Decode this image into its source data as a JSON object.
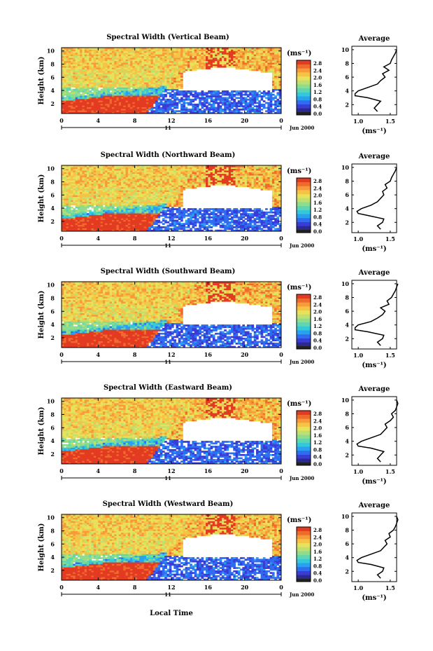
{
  "figure": {
    "xlabel": "Local Time",
    "avg_title": "Average"
  },
  "chart_data": [
    {
      "type": "heatmap",
      "title": "Spectral Width (Vertical Beam)",
      "ylabel": "Height (km)",
      "x_ticks": [
        "0",
        "4",
        "8",
        "12",
        "16",
        "20",
        "0"
      ],
      "y_ticks": [
        "2",
        "4",
        "6",
        "8",
        "10"
      ],
      "xlim": [
        0,
        24
      ],
      "ylim": [
        0.5,
        10.5
      ],
      "day_label": "11",
      "date_label": "Jun 2000",
      "colorbar": {
        "unit": "(ms⁻¹)",
        "ticks": [
          "2.8",
          "2.4",
          "2.0",
          "1.6",
          "1.2",
          "0.8",
          "0.4",
          "0.0"
        ],
        "range": [
          0.0,
          2.8
        ]
      },
      "average": {
        "title": "Average",
        "xlabel": "(ms⁻¹)",
        "x_ticks": [
          "1.0",
          "1.5"
        ],
        "xlim": [
          0.9,
          1.6
        ],
        "y_ticks": [
          "2",
          "4",
          "6",
          "8",
          "10"
        ],
        "heights": [
          1.0,
          1.5,
          2.0,
          2.5,
          3.0,
          3.3,
          3.6,
          4.0,
          4.5,
          5.0,
          5.5,
          6.0,
          6.5,
          7.0,
          7.5,
          8.0,
          8.5,
          9.0,
          9.5,
          10.0
        ],
        "values": [
          1.3,
          1.25,
          1.3,
          1.35,
          1.15,
          0.95,
          0.95,
          1.0,
          1.15,
          1.3,
          1.35,
          1.42,
          1.38,
          1.48,
          1.4,
          1.5,
          1.52,
          1.55,
          1.58,
          1.6
        ]
      }
    },
    {
      "type": "heatmap",
      "title": "Spectral Width (Northward Beam)",
      "ylabel": "Height (km)",
      "x_ticks": [
        "0",
        "4",
        "8",
        "12",
        "16",
        "20",
        "0"
      ],
      "y_ticks": [
        "2",
        "4",
        "6",
        "8",
        "10"
      ],
      "xlim": [
        0,
        24
      ],
      "ylim": [
        0.5,
        10.5
      ],
      "day_label": "11",
      "date_label": "Jun 2000",
      "colorbar": {
        "unit": "(ms⁻¹)",
        "ticks": [
          "2.8",
          "2.4",
          "2.0",
          "1.6",
          "1.2",
          "0.8",
          "0.4",
          "0.0"
        ],
        "range": [
          0.0,
          2.8
        ]
      },
      "average": {
        "title": "Average",
        "xlabel": "(ms⁻¹)",
        "x_ticks": [
          "1.0",
          "1.5"
        ],
        "xlim": [
          0.9,
          1.6
        ],
        "y_ticks": [
          "2",
          "4",
          "6",
          "8",
          "10"
        ],
        "heights": [
          1.0,
          1.5,
          2.0,
          2.5,
          3.0,
          3.3,
          3.6,
          4.0,
          4.5,
          5.0,
          5.5,
          6.0,
          6.5,
          7.0,
          7.5,
          8.0,
          8.5,
          9.0,
          9.5,
          10.0
        ],
        "values": [
          1.35,
          1.3,
          1.38,
          1.4,
          1.15,
          1.0,
          0.98,
          1.05,
          1.2,
          1.3,
          1.35,
          1.4,
          1.38,
          1.45,
          1.42,
          1.5,
          1.52,
          1.55,
          1.58,
          1.6
        ]
      }
    },
    {
      "type": "heatmap",
      "title": "Spectral Width (Southward Beam)",
      "ylabel": "Height (km)",
      "x_ticks": [
        "0",
        "4",
        "8",
        "12",
        "16",
        "20",
        "0"
      ],
      "y_ticks": [
        "2",
        "4",
        "6",
        "8",
        "10"
      ],
      "xlim": [
        0,
        24
      ],
      "ylim": [
        0.5,
        10.5
      ],
      "day_label": "11",
      "date_label": "Jun 2000",
      "colorbar": {
        "unit": "(ms⁻¹)",
        "ticks": [
          "2.8",
          "2.4",
          "2.0",
          "1.6",
          "1.2",
          "0.8",
          "0.4",
          "0.0"
        ],
        "range": [
          0.0,
          2.8
        ]
      },
      "average": {
        "title": "Average",
        "xlabel": "(ms⁻¹)",
        "x_ticks": [
          "1.0",
          "1.5"
        ],
        "xlim": [
          0.9,
          1.6
        ],
        "y_ticks": [
          "2",
          "4",
          "6",
          "8",
          "10"
        ],
        "heights": [
          1.0,
          1.5,
          2.0,
          2.5,
          3.0,
          3.3,
          3.6,
          4.0,
          4.5,
          5.0,
          5.5,
          6.0,
          6.5,
          7.0,
          7.5,
          8.0,
          8.5,
          9.0,
          9.5,
          10.0
        ],
        "values": [
          1.35,
          1.3,
          1.38,
          1.4,
          1.15,
          0.95,
          0.95,
          1.0,
          1.2,
          1.3,
          1.38,
          1.42,
          1.35,
          1.48,
          1.45,
          1.52,
          1.55,
          1.58,
          1.6,
          1.62
        ]
      }
    },
    {
      "type": "heatmap",
      "title": "Spectral Width (Eastward Beam)",
      "ylabel": "Height (km)",
      "x_ticks": [
        "0",
        "4",
        "8",
        "12",
        "16",
        "20",
        "0"
      ],
      "y_ticks": [
        "2",
        "4",
        "6",
        "8",
        "10"
      ],
      "xlim": [
        0,
        24
      ],
      "ylim": [
        0.5,
        10.5
      ],
      "day_label": "11",
      "date_label": "Jun 2000",
      "colorbar": {
        "unit": "(ms⁻¹)",
        "ticks": [
          "2.8",
          "2.4",
          "2.0",
          "1.6",
          "1.2",
          "0.8",
          "0.4",
          "0.0"
        ],
        "range": [
          0.0,
          2.8
        ]
      },
      "average": {
        "title": "Average",
        "xlabel": "(ms⁻¹)",
        "x_ticks": [
          "1.0",
          "1.5"
        ],
        "xlim": [
          0.9,
          1.6
        ],
        "y_ticks": [
          "2",
          "4",
          "6",
          "8",
          "10"
        ],
        "heights": [
          1.0,
          1.5,
          2.0,
          2.5,
          3.0,
          3.3,
          3.6,
          4.0,
          4.5,
          5.0,
          5.5,
          6.0,
          6.5,
          7.0,
          7.5,
          8.0,
          8.5,
          9.0,
          9.5,
          10.0
        ],
        "values": [
          1.35,
          1.3,
          1.35,
          1.4,
          1.2,
          1.0,
          0.98,
          1.05,
          1.2,
          1.35,
          1.4,
          1.45,
          1.42,
          1.5,
          1.55,
          1.52,
          1.58,
          1.6,
          1.62,
          1.6
        ]
      }
    },
    {
      "type": "heatmap",
      "title": "Spectral Width (Westward Beam)",
      "ylabel": "Height (km)",
      "x_ticks": [
        "0",
        "4",
        "8",
        "12",
        "16",
        "20",
        "0"
      ],
      "y_ticks": [
        "2",
        "4",
        "6",
        "8",
        "10"
      ],
      "xlim": [
        0,
        24
      ],
      "ylim": [
        0.5,
        10.5
      ],
      "day_label": "11",
      "date_label": "Jun 2000",
      "colorbar": {
        "unit": "(ms⁻¹)",
        "ticks": [
          "2.8",
          "2.4",
          "2.0",
          "1.6",
          "1.2",
          "0.8",
          "0.4",
          "0.0"
        ],
        "range": [
          0.0,
          2.8
        ]
      },
      "average": {
        "title": "Average",
        "xlabel": "(ms⁻¹)",
        "x_ticks": [
          "1.0",
          "1.5"
        ],
        "xlim": [
          0.9,
          1.6
        ],
        "y_ticks": [
          "2",
          "4",
          "6",
          "8",
          "10"
        ],
        "heights": [
          1.0,
          1.5,
          2.0,
          2.5,
          3.0,
          3.3,
          3.6,
          4.0,
          4.5,
          5.0,
          5.5,
          6.0,
          6.5,
          7.0,
          7.5,
          8.0,
          8.5,
          9.0,
          9.5,
          10.0
        ],
        "values": [
          1.35,
          1.3,
          1.38,
          1.4,
          1.2,
          1.0,
          0.98,
          1.05,
          1.2,
          1.35,
          1.4,
          1.45,
          1.42,
          1.5,
          1.48,
          1.55,
          1.58,
          1.6,
          1.62,
          1.6
        ]
      }
    }
  ]
}
